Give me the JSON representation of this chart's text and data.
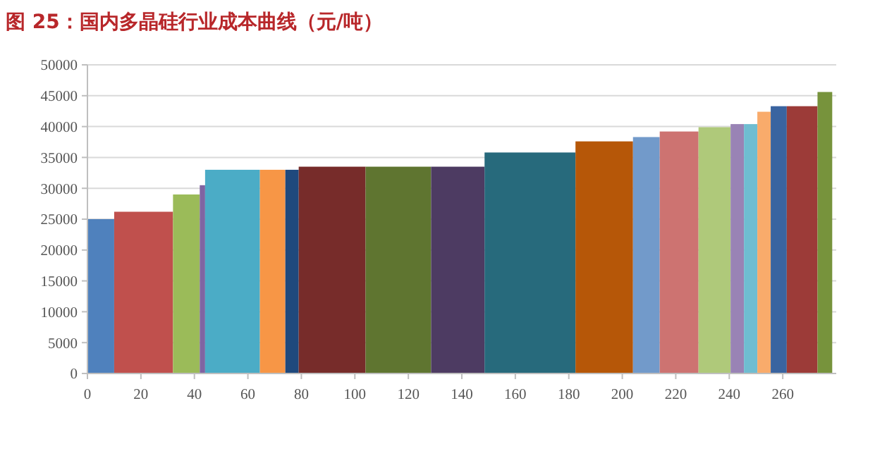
{
  "chart_data": {
    "type": "histogram",
    "title": "图 25：国内多晶硅行业成本曲线（元/吨）",
    "bins": [
      0,
      10,
      32,
      42,
      44,
      64.5,
      74,
      79,
      104,
      128.5,
      148.5,
      182.5,
      204,
      214,
      228.5,
      240.5,
      245.5,
      250.5,
      255.5,
      261.5,
      273,
      278.5
    ],
    "values": [
      25000,
      26200,
      29000,
      30500,
      33000,
      33000,
      33000,
      33500,
      33500,
      33500,
      35800,
      37600,
      38300,
      39200,
      39900,
      40400,
      40400,
      42400,
      43300,
      43300,
      45600
    ],
    "colors": [
      "#4f81bd",
      "#c0504d",
      "#9bbb59",
      "#8064a2",
      "#4bacc6",
      "#f79646",
      "#1f497d",
      "#772c2a",
      "#5f7530",
      "#4d3b62",
      "#276a7c",
      "#b65708",
      "#729aca",
      "#cd7371",
      "#afc97a",
      "#9983b5",
      "#6fbdd1",
      "#f9ab6b",
      "#3a64a0",
      "#9c3b38",
      "#77933c"
    ],
    "xlim": [
      0,
      280
    ],
    "xticks": [
      0,
      20,
      40,
      60,
      80,
      100,
      120,
      140,
      160,
      180,
      200,
      220,
      240,
      260
    ],
    "ylim": [
      0,
      50000
    ],
    "yticks": [
      0,
      5000,
      10000,
      15000,
      20000,
      25000,
      30000,
      35000,
      40000,
      45000,
      50000
    ],
    "grid": "y"
  }
}
